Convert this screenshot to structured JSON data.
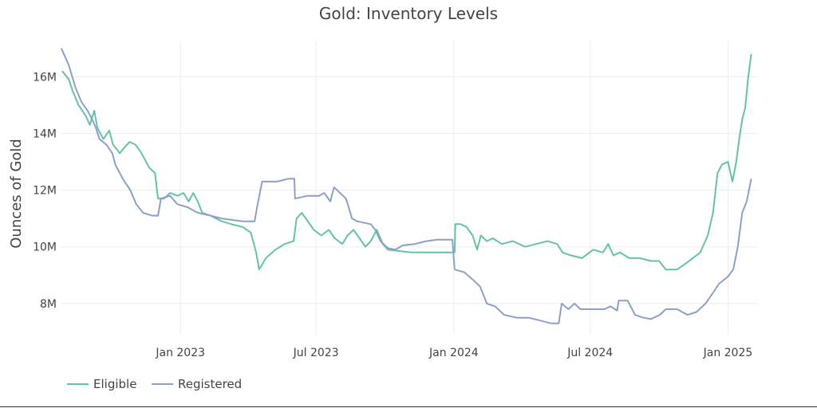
{
  "chart_data": {
    "type": "line",
    "title": "Gold: Inventory Levels",
    "xlabel": "",
    "ylabel": "Ounces of Gold",
    "x_range": [
      "2022-07-25",
      "2025-02-10"
    ],
    "ylim": [
      6.9,
      17.3
    ],
    "x_ticks": [
      {
        "date": "2023-01-01",
        "label": "Jan 2023"
      },
      {
        "date": "2023-07-01",
        "label": "Jul 2023"
      },
      {
        "date": "2024-01-01",
        "label": "Jan 2024"
      },
      {
        "date": "2024-07-01",
        "label": "Jul 2024"
      },
      {
        "date": "2025-01-01",
        "label": "Jan 2025"
      }
    ],
    "y_ticks": [
      {
        "value": 8,
        "label": "8M"
      },
      {
        "value": 10,
        "label": "10M"
      },
      {
        "value": 12,
        "label": "12M"
      },
      {
        "value": 14,
        "label": "14M"
      },
      {
        "value": 16,
        "label": "16M"
      }
    ],
    "grid": true,
    "legend_position": "bottom-left",
    "series": [
      {
        "name": "Eligible",
        "color": "#66c2a5",
        "points": [
          [
            "2022-07-27",
            16.2
          ],
          [
            "2022-08-05",
            15.9
          ],
          [
            "2022-08-10",
            15.5
          ],
          [
            "2022-08-18",
            15.0
          ],
          [
            "2022-08-28",
            14.6
          ],
          [
            "2022-09-02",
            14.3
          ],
          [
            "2022-09-08",
            14.8
          ],
          [
            "2022-09-12",
            14.2
          ],
          [
            "2022-09-20",
            13.8
          ],
          [
            "2022-09-28",
            14.1
          ],
          [
            "2022-10-03",
            13.6
          ],
          [
            "2022-10-12",
            13.3
          ],
          [
            "2022-10-18",
            13.5
          ],
          [
            "2022-10-25",
            13.7
          ],
          [
            "2022-11-02",
            13.6
          ],
          [
            "2022-11-10",
            13.3
          ],
          [
            "2022-11-20",
            12.8
          ],
          [
            "2022-11-28",
            12.6
          ],
          [
            "2022-12-02",
            11.7
          ],
          [
            "2022-12-10",
            11.7
          ],
          [
            "2022-12-18",
            11.9
          ],
          [
            "2022-12-28",
            11.8
          ],
          [
            "2023-01-05",
            11.9
          ],
          [
            "2023-01-12",
            11.6
          ],
          [
            "2023-01-18",
            11.9
          ],
          [
            "2023-01-24",
            11.6
          ],
          [
            "2023-01-30",
            11.2
          ],
          [
            "2023-02-10",
            11.1
          ],
          [
            "2023-02-25",
            10.9
          ],
          [
            "2023-03-10",
            10.8
          ],
          [
            "2023-03-25",
            10.7
          ],
          [
            "2023-04-05",
            10.5
          ],
          [
            "2023-04-12",
            9.8
          ],
          [
            "2023-04-16",
            9.2
          ],
          [
            "2023-04-25",
            9.6
          ],
          [
            "2023-05-08",
            9.9
          ],
          [
            "2023-05-20",
            10.1
          ],
          [
            "2023-06-01",
            10.2
          ],
          [
            "2023-06-05",
            11.0
          ],
          [
            "2023-06-12",
            11.2
          ],
          [
            "2023-06-20",
            10.9
          ],
          [
            "2023-06-28",
            10.6
          ],
          [
            "2023-07-08",
            10.4
          ],
          [
            "2023-07-18",
            10.6
          ],
          [
            "2023-07-26",
            10.3
          ],
          [
            "2023-08-05",
            10.1
          ],
          [
            "2023-08-12",
            10.4
          ],
          [
            "2023-08-20",
            10.6
          ],
          [
            "2023-08-28",
            10.3
          ],
          [
            "2023-09-05",
            10.0
          ],
          [
            "2023-09-12",
            10.2
          ],
          [
            "2023-09-20",
            10.6
          ],
          [
            "2023-09-28",
            10.1
          ],
          [
            "2023-10-05",
            9.9
          ],
          [
            "2023-10-20",
            9.85
          ],
          [
            "2023-11-05",
            9.8
          ],
          [
            "2023-11-20",
            9.8
          ],
          [
            "2023-12-05",
            9.8
          ],
          [
            "2023-12-20",
            9.8
          ],
          [
            "2024-01-02",
            9.8
          ],
          [
            "2024-01-03",
            10.8
          ],
          [
            "2024-01-10",
            10.8
          ],
          [
            "2024-01-18",
            10.7
          ],
          [
            "2024-01-26",
            10.4
          ],
          [
            "2024-02-01",
            9.9
          ],
          [
            "2024-02-06",
            10.4
          ],
          [
            "2024-02-14",
            10.2
          ],
          [
            "2024-02-22",
            10.3
          ],
          [
            "2024-03-05",
            10.1
          ],
          [
            "2024-03-20",
            10.2
          ],
          [
            "2024-04-05",
            10.0
          ],
          [
            "2024-04-20",
            10.1
          ],
          [
            "2024-05-05",
            10.2
          ],
          [
            "2024-05-18",
            10.1
          ],
          [
            "2024-05-25",
            9.8
          ],
          [
            "2024-06-05",
            9.7
          ],
          [
            "2024-06-20",
            9.6
          ],
          [
            "2024-07-05",
            9.9
          ],
          [
            "2024-07-18",
            9.8
          ],
          [
            "2024-07-25",
            10.1
          ],
          [
            "2024-08-01",
            9.7
          ],
          [
            "2024-08-10",
            9.8
          ],
          [
            "2024-08-22",
            9.6
          ],
          [
            "2024-09-05",
            9.6
          ],
          [
            "2024-09-20",
            9.5
          ],
          [
            "2024-10-01",
            9.5
          ],
          [
            "2024-10-10",
            9.2
          ],
          [
            "2024-10-25",
            9.2
          ],
          [
            "2024-11-05",
            9.4
          ],
          [
            "2024-11-15",
            9.6
          ],
          [
            "2024-11-25",
            9.8
          ],
          [
            "2024-12-05",
            10.4
          ],
          [
            "2024-12-12",
            11.2
          ],
          [
            "2024-12-18",
            12.6
          ],
          [
            "2024-12-24",
            12.9
          ],
          [
            "2025-01-01",
            13.0
          ],
          [
            "2025-01-07",
            12.3
          ],
          [
            "2025-01-12",
            13.0
          ],
          [
            "2025-01-16",
            13.8
          ],
          [
            "2025-01-20",
            14.5
          ],
          [
            "2025-01-24",
            14.9
          ],
          [
            "2025-01-28",
            16.0
          ],
          [
            "2025-02-01",
            16.8
          ]
        ]
      },
      {
        "name": "Registered",
        "color": "#8da0cb",
        "points": [
          [
            "2022-07-26",
            17.0
          ],
          [
            "2022-08-05",
            16.4
          ],
          [
            "2022-08-14",
            15.6
          ],
          [
            "2022-08-22",
            15.1
          ],
          [
            "2022-08-30",
            14.8
          ],
          [
            "2022-09-05",
            14.5
          ],
          [
            "2022-09-10",
            14.2
          ],
          [
            "2022-09-15",
            13.8
          ],
          [
            "2022-09-24",
            13.6
          ],
          [
            "2022-10-02",
            13.3
          ],
          [
            "2022-10-06",
            12.9
          ],
          [
            "2022-10-16",
            12.4
          ],
          [
            "2022-10-26",
            12.0
          ],
          [
            "2022-11-03",
            11.5
          ],
          [
            "2022-11-12",
            11.2
          ],
          [
            "2022-11-24",
            11.1
          ],
          [
            "2022-12-02",
            11.1
          ],
          [
            "2022-12-06",
            11.7
          ],
          [
            "2022-12-18",
            11.8
          ],
          [
            "2022-12-28",
            11.5
          ],
          [
            "2023-01-10",
            11.4
          ],
          [
            "2023-01-24",
            11.2
          ],
          [
            "2023-02-10",
            11.1
          ],
          [
            "2023-02-25",
            11.0
          ],
          [
            "2023-03-10",
            10.95
          ],
          [
            "2023-03-25",
            10.9
          ],
          [
            "2023-04-10",
            10.9
          ],
          [
            "2023-04-14",
            11.5
          ],
          [
            "2023-04-20",
            12.3
          ],
          [
            "2023-05-10",
            12.3
          ],
          [
            "2023-05-25",
            12.4
          ],
          [
            "2023-06-02",
            12.4
          ],
          [
            "2023-06-03",
            11.7
          ],
          [
            "2023-06-20",
            11.8
          ],
          [
            "2023-07-05",
            11.8
          ],
          [
            "2023-07-12",
            11.9
          ],
          [
            "2023-07-20",
            11.6
          ],
          [
            "2023-07-25",
            12.1
          ],
          [
            "2023-08-02",
            11.9
          ],
          [
            "2023-08-10",
            11.7
          ],
          [
            "2023-08-18",
            11.0
          ],
          [
            "2023-08-25",
            10.9
          ],
          [
            "2023-09-12",
            10.8
          ],
          [
            "2023-09-18",
            10.6
          ],
          [
            "2023-09-25",
            10.2
          ],
          [
            "2023-10-05",
            9.95
          ],
          [
            "2023-10-15",
            9.9
          ],
          [
            "2023-10-25",
            10.05
          ],
          [
            "2023-11-10",
            10.1
          ],
          [
            "2023-11-25",
            10.2
          ],
          [
            "2023-12-10",
            10.25
          ],
          [
            "2023-12-30",
            10.25
          ],
          [
            "2024-01-02",
            9.2
          ],
          [
            "2024-01-15",
            9.1
          ],
          [
            "2024-01-28",
            8.8
          ],
          [
            "2024-02-05",
            8.6
          ],
          [
            "2024-02-14",
            8.0
          ],
          [
            "2024-02-25",
            7.9
          ],
          [
            "2024-03-08",
            7.6
          ],
          [
            "2024-03-25",
            7.5
          ],
          [
            "2024-04-10",
            7.5
          ],
          [
            "2024-04-25",
            7.4
          ],
          [
            "2024-05-10",
            7.3
          ],
          [
            "2024-05-20",
            7.3
          ],
          [
            "2024-05-24",
            8.0
          ],
          [
            "2024-06-02",
            7.8
          ],
          [
            "2024-06-10",
            8.0
          ],
          [
            "2024-06-18",
            7.8
          ],
          [
            "2024-07-02",
            7.8
          ],
          [
            "2024-07-20",
            7.8
          ],
          [
            "2024-07-28",
            7.9
          ],
          [
            "2024-08-06",
            7.75
          ],
          [
            "2024-08-08",
            8.1
          ],
          [
            "2024-08-20",
            8.1
          ],
          [
            "2024-08-30",
            7.6
          ],
          [
            "2024-09-10",
            7.5
          ],
          [
            "2024-09-20",
            7.45
          ],
          [
            "2024-10-02",
            7.6
          ],
          [
            "2024-10-10",
            7.8
          ],
          [
            "2024-10-25",
            7.8
          ],
          [
            "2024-11-08",
            7.6
          ],
          [
            "2024-11-20",
            7.7
          ],
          [
            "2024-12-02",
            8.0
          ],
          [
            "2024-12-10",
            8.3
          ],
          [
            "2024-12-20",
            8.7
          ],
          [
            "2025-01-01",
            8.95
          ],
          [
            "2025-01-08",
            9.2
          ],
          [
            "2025-01-14",
            10.0
          ],
          [
            "2025-01-20",
            11.2
          ],
          [
            "2025-01-26",
            11.6
          ],
          [
            "2025-02-01",
            12.4
          ]
        ]
      }
    ]
  }
}
